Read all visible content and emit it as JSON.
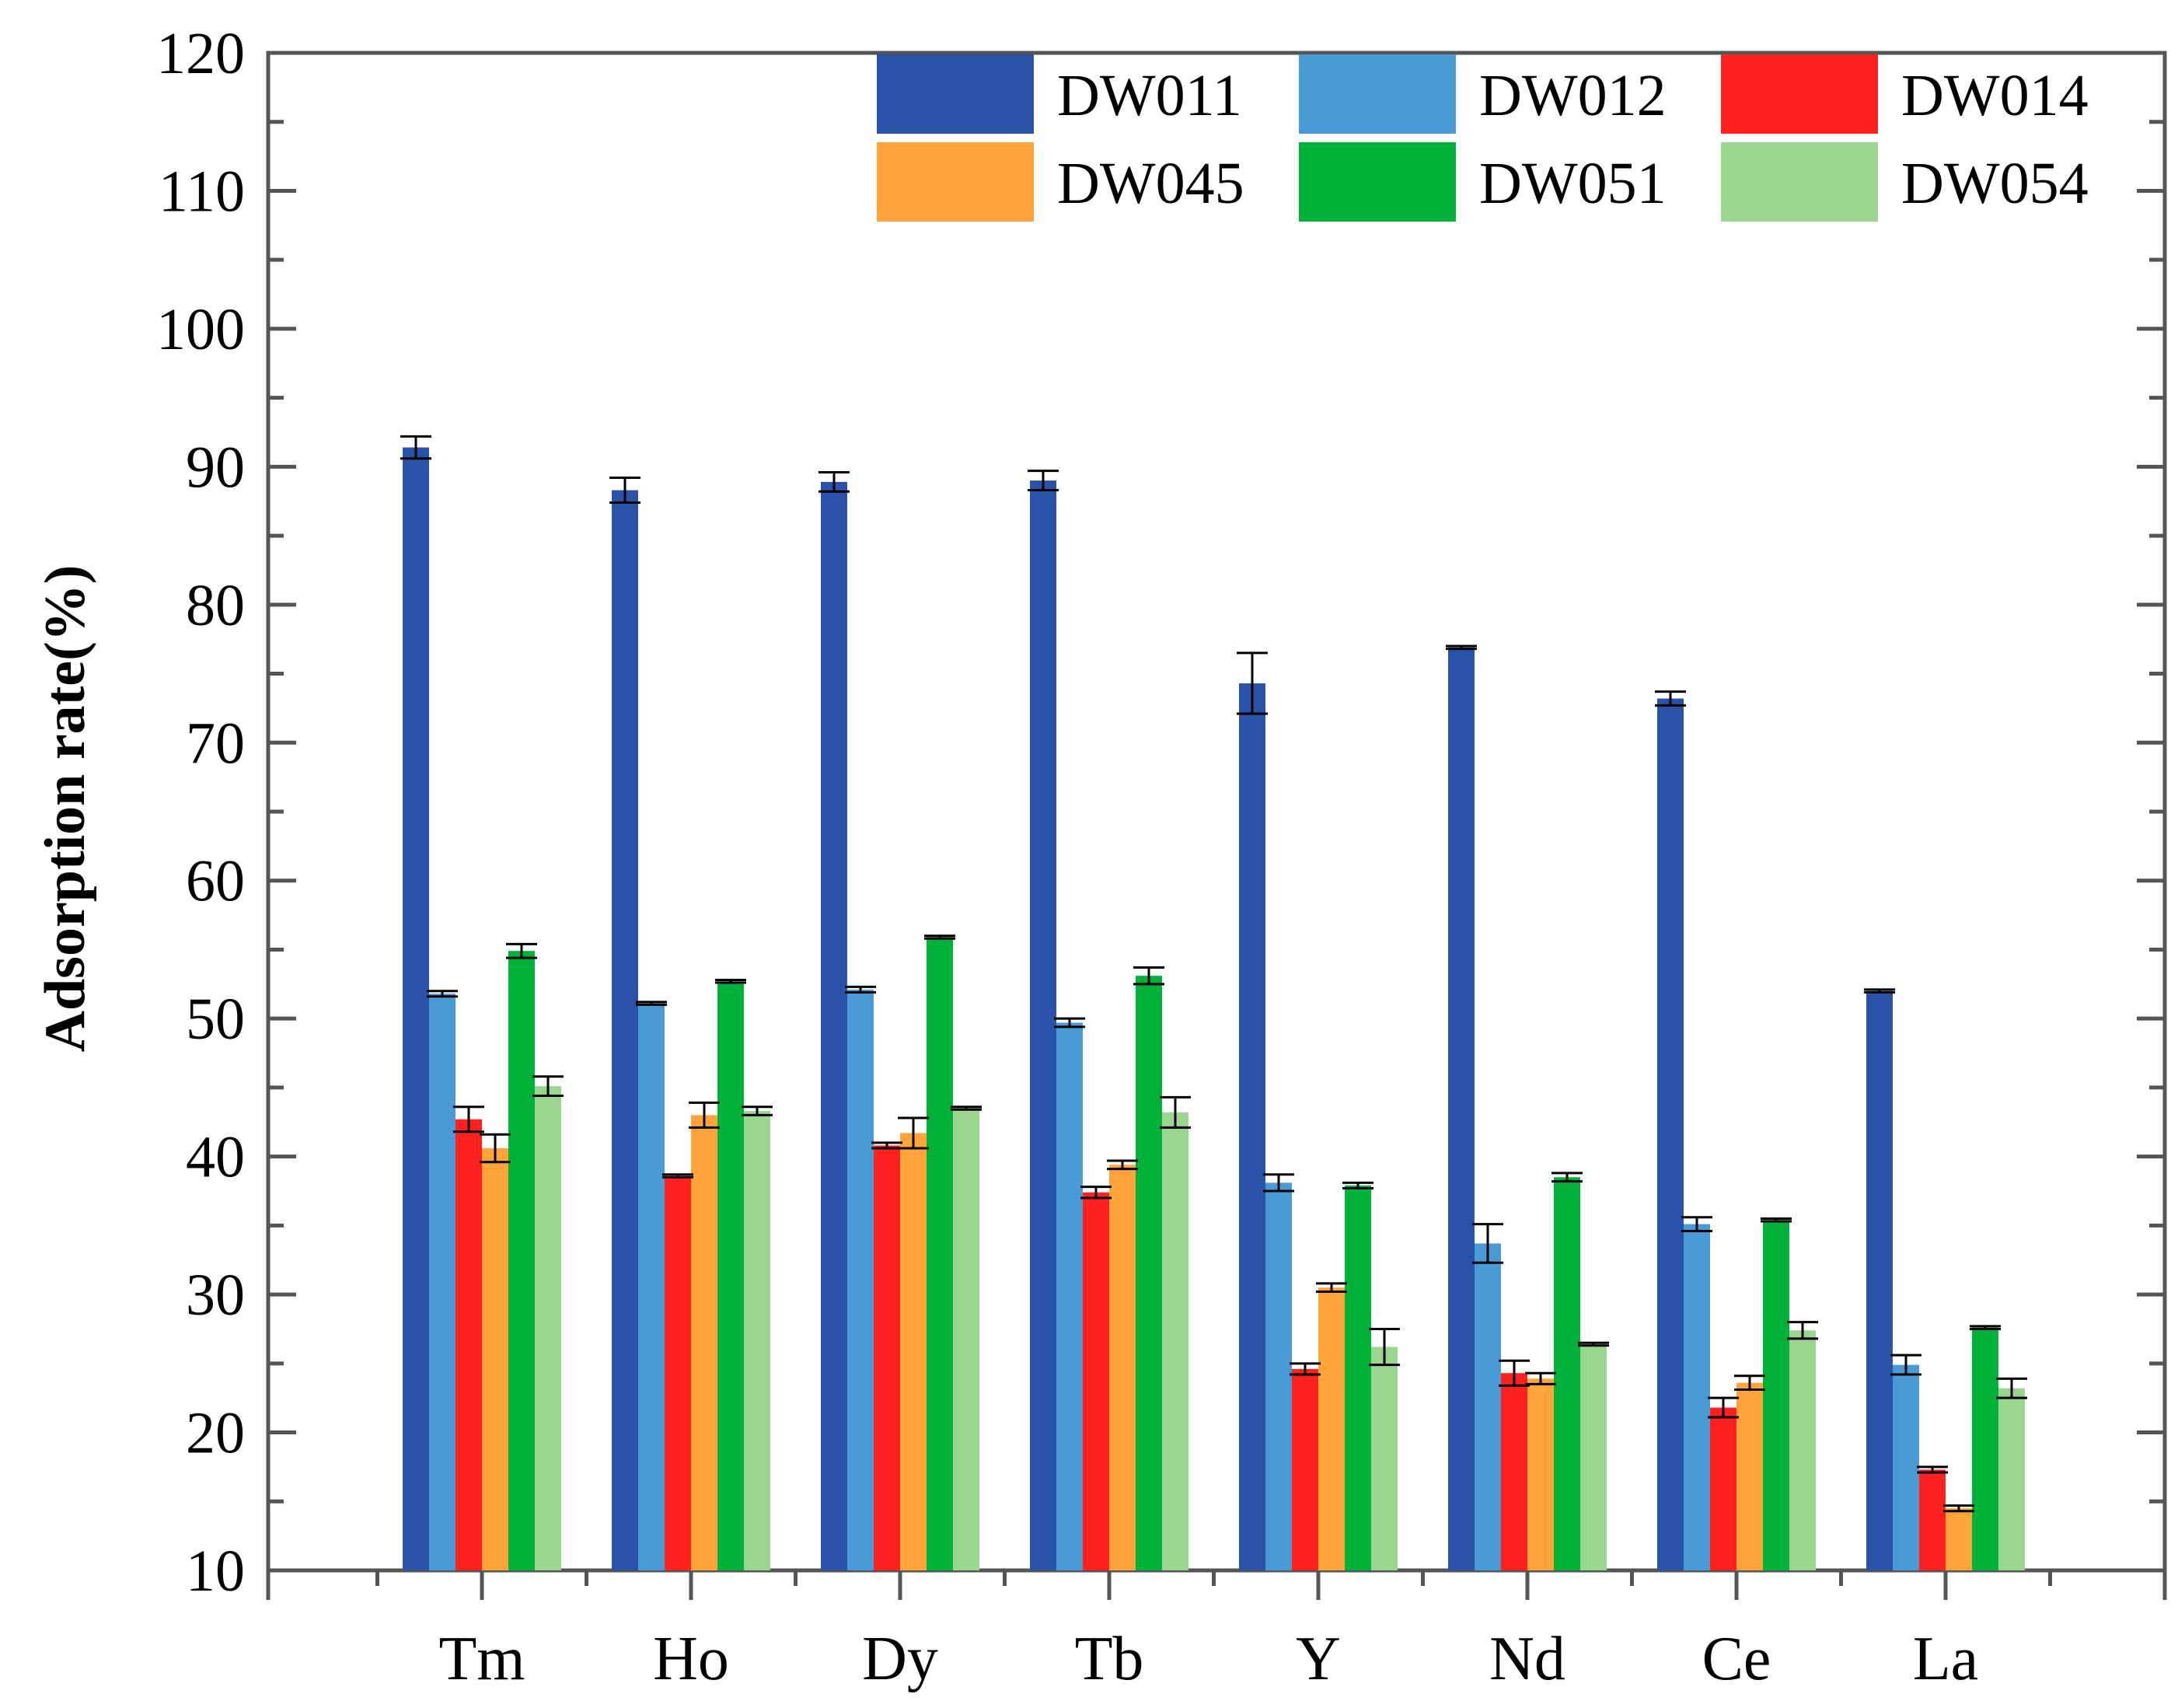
{
  "chart_data": {
    "type": "bar",
    "title": "",
    "xlabel": "",
    "ylabel": "Adsorption rate(%)",
    "ylim": [
      10,
      120
    ],
    "yticks": [
      10,
      20,
      30,
      40,
      50,
      60,
      70,
      80,
      90,
      100,
      110,
      120
    ],
    "grid": false,
    "legend_position": "top-right",
    "categories": [
      "Tm",
      "Ho",
      "Dy",
      "Tb",
      "Y",
      "Nd",
      "Ce",
      "La"
    ],
    "series": [
      {
        "name": "DW011",
        "color": "#2A52A8",
        "values": [
          91.4,
          88.3,
          88.9,
          89.0,
          74.3,
          76.9,
          73.2,
          52.0
        ],
        "errors": [
          0.8,
          0.9,
          0.7,
          0.7,
          2.2,
          0.1,
          0.5,
          0.1
        ]
      },
      {
        "name": "DW012",
        "color": "#4A9AD5",
        "values": [
          51.8,
          51.1,
          52.1,
          49.7,
          38.1,
          33.7,
          35.1,
          24.9
        ],
        "errors": [
          0.2,
          0.1,
          0.2,
          0.3,
          0.6,
          1.4,
          0.5,
          0.7
        ]
      },
      {
        "name": "DW014",
        "color": "#FF2020",
        "values": [
          42.7,
          38.6,
          40.8,
          37.4,
          24.6,
          24.3,
          21.8,
          17.3
        ],
        "errors": [
          0.9,
          0.1,
          0.2,
          0.4,
          0.4,
          0.9,
          0.7,
          0.2
        ]
      },
      {
        "name": "DW045",
        "color": "#FFA33A",
        "values": [
          40.6,
          43.0,
          41.7,
          39.4,
          30.5,
          23.9,
          23.6,
          14.5
        ],
        "errors": [
          1.0,
          0.9,
          1.1,
          0.3,
          0.3,
          0.4,
          0.5,
          0.2
        ]
      },
      {
        "name": "DW051",
        "color": "#00B23A",
        "values": [
          54.9,
          52.7,
          55.9,
          53.1,
          37.9,
          38.5,
          35.4,
          27.6
        ],
        "errors": [
          0.5,
          0.1,
          0.1,
          0.6,
          0.2,
          0.3,
          0.1,
          0.1
        ]
      },
      {
        "name": "DW054",
        "color": "#9AD690",
        "values": [
          45.1,
          43.3,
          43.5,
          43.2,
          26.2,
          26.4,
          27.4,
          23.2
        ],
        "errors": [
          0.7,
          0.3,
          0.1,
          1.1,
          1.3,
          0.1,
          0.6,
          0.7
        ]
      }
    ]
  }
}
